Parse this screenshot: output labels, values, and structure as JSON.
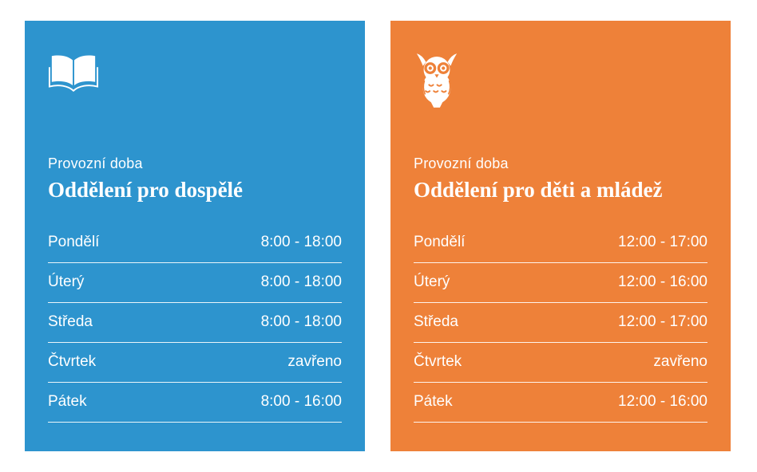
{
  "cards": [
    {
      "id": "adults",
      "color": "#2D94CE",
      "icon": "open-book-icon",
      "label": "Provozní doba",
      "title": "Oddělení pro dospělé",
      "schedule": [
        {
          "day": "Pondělí",
          "hours": "8:00 - 18:00"
        },
        {
          "day": "Úterý",
          "hours": "8:00 - 18:00"
        },
        {
          "day": "Středa",
          "hours": "8:00 - 18:00"
        },
        {
          "day": "Čtvrtek",
          "hours": "zavřeno"
        },
        {
          "day": "Pátek",
          "hours": "8:00 - 16:00"
        }
      ]
    },
    {
      "id": "children",
      "color": "#EE8139",
      "icon": "owl-icon",
      "label": "Provozní doba",
      "title": "Oddělení pro děti a mládež",
      "schedule": [
        {
          "day": "Pondělí",
          "hours": "12:00 - 17:00"
        },
        {
          "day": "Úterý",
          "hours": "12:00 - 16:00"
        },
        {
          "day": "Středa",
          "hours": "12:00 - 17:00"
        },
        {
          "day": "Čtvrtek",
          "hours": "zavřeno"
        },
        {
          "day": "Pátek",
          "hours": "12:00 - 16:00"
        }
      ]
    }
  ]
}
